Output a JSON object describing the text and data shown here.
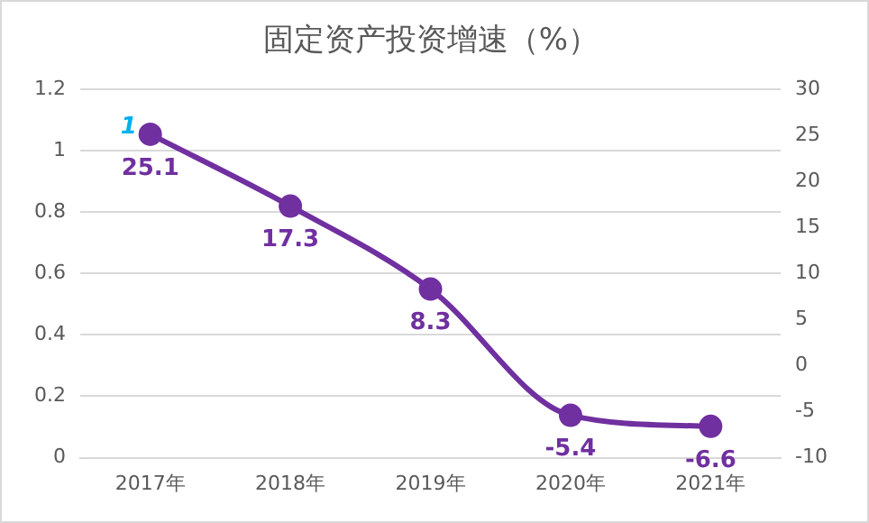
{
  "chart_data": {
    "type": "line",
    "title": "固定资产投资增速（%）",
    "categories": [
      "2017年",
      "2018年",
      "2019年",
      "2020年",
      "2021年"
    ],
    "series": [
      {
        "color": "#7030a0",
        "values": [
          25.1,
          17.3,
          8.3,
          -5.4,
          -6.6
        ],
        "axis": "y2"
      }
    ],
    "ylim": [
      0,
      1.2
    ],
    "yticks": [
      0,
      0.2,
      0.4,
      0.6,
      0.8,
      1,
      1.2
    ],
    "y2lim": [
      -10,
      30
    ],
    "y2ticks": [
      -10,
      -5,
      0,
      5,
      10,
      15,
      20,
      25,
      30
    ],
    "annotations": [
      {
        "text": "1",
        "x": "2017年",
        "y": 1
      }
    ],
    "grid": "y",
    "legend": false,
    "marker": "circle",
    "line_style": "solid",
    "data_labels": true
  }
}
